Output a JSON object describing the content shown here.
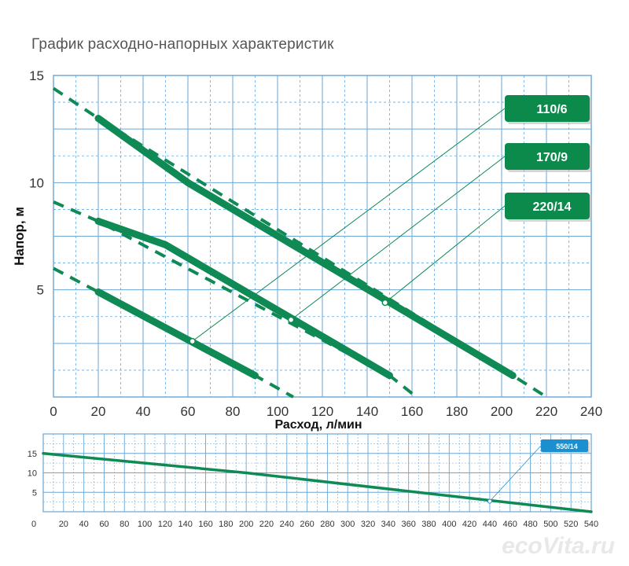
{
  "page": {
    "title": "График расходно-напорных характеристик"
  },
  "watermark": "ecoVita.ru",
  "colors": {
    "grid": "#6aa6d6",
    "curve": "#0f8a55",
    "label_green": "#0c8a4c",
    "label_blue": "#1b8fd0",
    "frame": "#6aa6d6"
  },
  "chart_data": [
    {
      "type": "line",
      "xlabel": "Расход, л/мин",
      "ylabel": "Напор, м",
      "xlim": [
        0,
        240
      ],
      "ylim": [
        0,
        15
      ],
      "xticks": [
        "0",
        "20",
        "40",
        "60",
        "80",
        "100",
        "120",
        "140",
        "160",
        "180",
        "200",
        "220",
        "240"
      ],
      "yticks": [
        "5",
        "10",
        "15"
      ],
      "grid": true,
      "series": [
        {
          "name": "110/6",
          "points": [
            [
              20,
              4.9
            ],
            [
              90,
              1.0
            ]
          ],
          "dashed": [
            [
              0,
              6.0
            ],
            [
              20,
              4.9
            ],
            [
              90,
              1.0
            ],
            [
              107,
              0.0
            ]
          ],
          "marker": [
            62,
            2.6
          ]
        },
        {
          "name": "170/9",
          "points": [
            [
              20,
              8.2
            ],
            [
              50,
              7.1
            ],
            [
              150,
              1.0
            ]
          ],
          "dashed": [
            [
              0,
              9.1
            ],
            [
              20,
              8.2
            ],
            [
              150,
              1.0
            ],
            [
              162,
              0.0
            ]
          ],
          "marker": [
            106,
            3.6
          ]
        },
        {
          "name": "220/14",
          "points": [
            [
              20,
              13.0
            ],
            [
              60,
              10.0
            ],
            [
              205,
              1.0
            ]
          ],
          "dashed": [
            [
              0,
              14.4
            ],
            [
              20,
              13.0
            ],
            [
              205,
              1.0
            ],
            [
              220,
              0.0
            ]
          ],
          "marker": [
            148,
            4.4
          ]
        }
      ]
    },
    {
      "type": "line",
      "xlim": [
        0,
        540
      ],
      "ylim": [
        0,
        20
      ],
      "xticks": [
        "0",
        "20",
        "40",
        "60",
        "80",
        "100",
        "120",
        "140",
        "160",
        "180",
        "200",
        "220",
        "240",
        "260",
        "280",
        "300",
        "320",
        "340",
        "360",
        "380",
        "400",
        "420",
        "440",
        "460",
        "480",
        "500",
        "520",
        "540"
      ],
      "yticks": [
        "5",
        "10",
        "15"
      ],
      "grid": true,
      "series": [
        {
          "name": "550/14",
          "points": [
            [
              0,
              15.0
            ],
            [
              200,
              10.0
            ],
            [
              420,
              3.5
            ],
            [
              540,
              0.0
            ]
          ],
          "marker": [
            440,
            2.7
          ]
        }
      ]
    }
  ]
}
